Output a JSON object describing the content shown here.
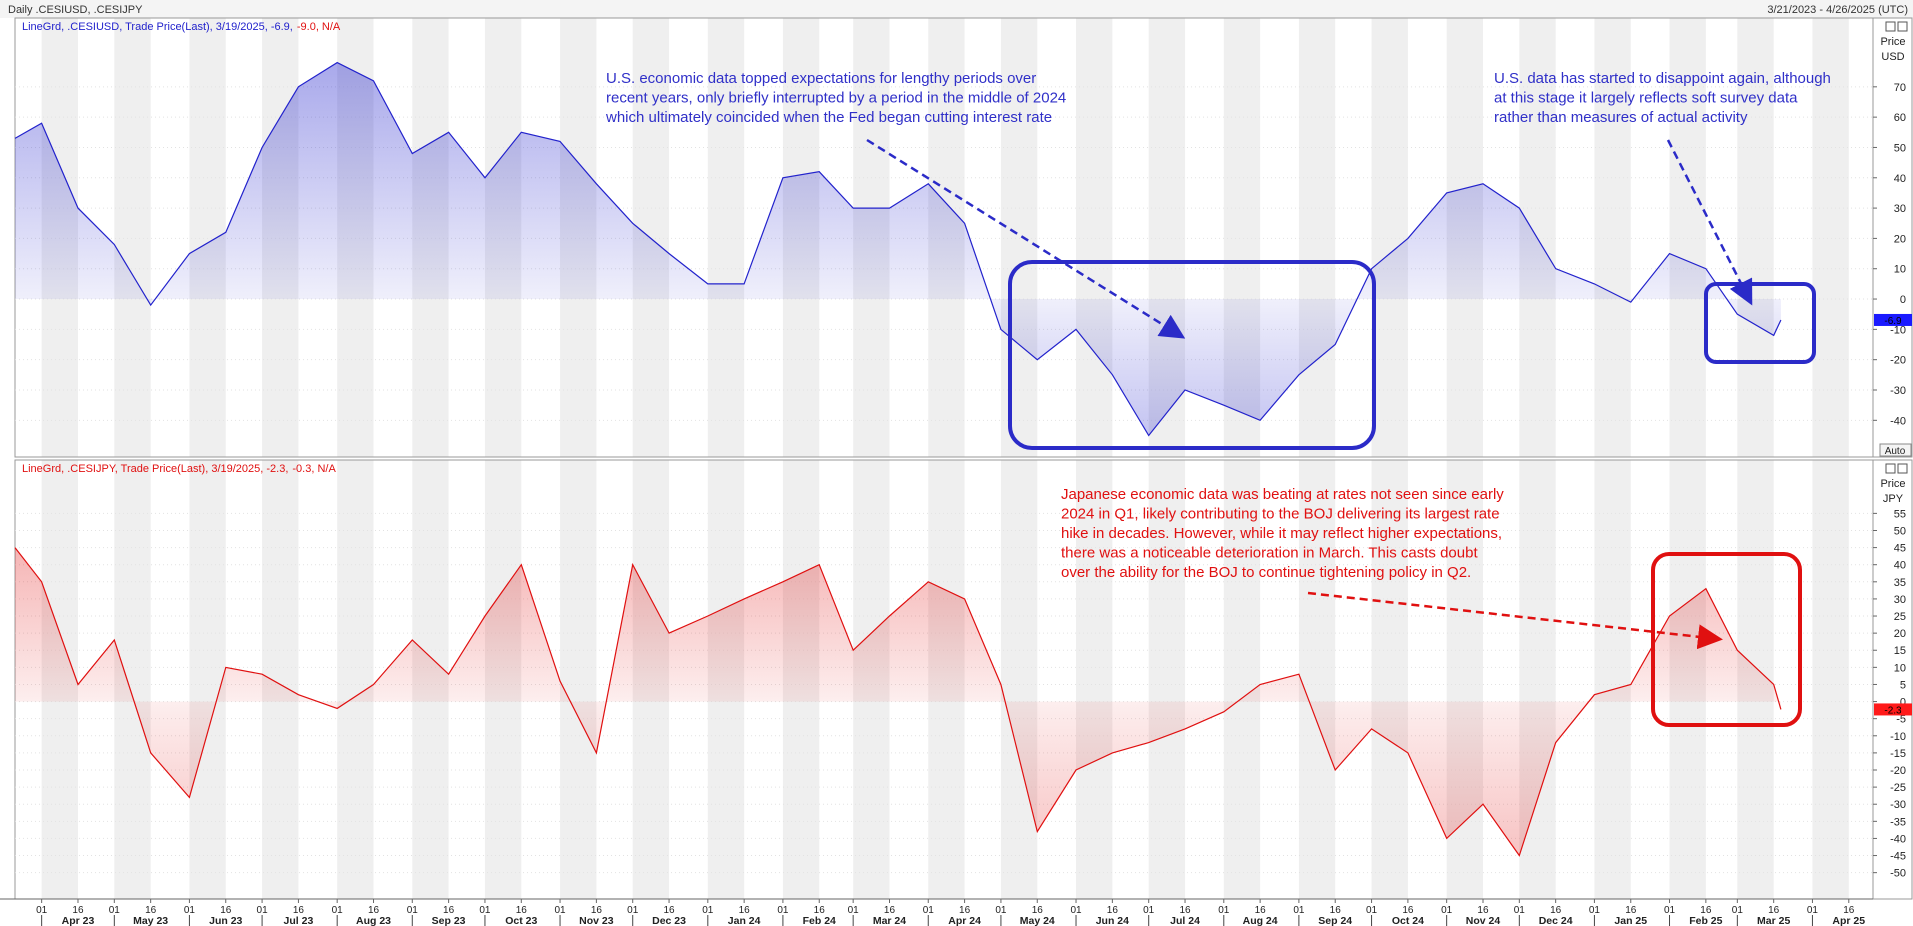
{
  "header": {
    "title": "Daily .CESIUSD, .CESIJPY",
    "range": "3/21/2023 - 4/26/2025 (UTC)"
  },
  "chart_data": [
    {
      "type": "line",
      "legend": "LineGrd, .CESIUSD, Trade Price(Last), 3/19/2025, -6.9,",
      "legend_change": "-9.0, N/A",
      "color": "#2222cc",
      "axis_label": [
        "Price",
        "USD"
      ],
      "auto_label": "Auto",
      "x": [
        "2023-03-21",
        "2023-04-01",
        "2023-04-16",
        "2023-05-01",
        "2023-05-16",
        "2023-06-01",
        "2023-06-16",
        "2023-07-01",
        "2023-07-16",
        "2023-08-01",
        "2023-08-16",
        "2023-09-01",
        "2023-09-16",
        "2023-10-01",
        "2023-10-16",
        "2023-11-01",
        "2023-11-16",
        "2023-12-01",
        "2023-12-16",
        "2024-01-01",
        "2024-01-16",
        "2024-02-01",
        "2024-02-16",
        "2024-03-01",
        "2024-03-16",
        "2024-04-01",
        "2024-04-16",
        "2024-05-01",
        "2024-05-16",
        "2024-06-01",
        "2024-06-16",
        "2024-07-01",
        "2024-07-16",
        "2024-08-01",
        "2024-08-16",
        "2024-09-01",
        "2024-09-16",
        "2024-10-01",
        "2024-10-16",
        "2024-11-01",
        "2024-11-16",
        "2024-12-01",
        "2024-12-16",
        "2025-01-01",
        "2025-01-16",
        "2025-02-01",
        "2025-02-16",
        "2025-03-01",
        "2025-03-16",
        "2025-03-19"
      ],
      "values": [
        53,
        58,
        30,
        18,
        -2,
        15,
        22,
        50,
        70,
        78,
        72,
        48,
        55,
        40,
        55,
        52,
        38,
        25,
        15,
        5,
        5,
        40,
        42,
        30,
        30,
        38,
        25,
        -10,
        -20,
        -10,
        -25,
        -45,
        -30,
        -35,
        -40,
        -25,
        -15,
        10,
        20,
        35,
        38,
        30,
        10,
        5,
        -1,
        15,
        10,
        -5,
        -12,
        -6.9
      ],
      "xlim": [
        "2023-03-21",
        "2025-04-26"
      ],
      "ylim": [
        -52.1,
        92.7
      ],
      "yticks": [
        -40,
        -30,
        -20,
        -10,
        0,
        10,
        20,
        30,
        40,
        50,
        60,
        70
      ],
      "annotations": [
        [
          "U.S. economic data topped expectations for lengthy periods over",
          "recent years, only briefly interrupted by a period in the middle of 2024",
          "which ultimately coincided when the Fed began cutting interest rate"
        ],
        [
          "U.S. data has started to disappoint again, although",
          "at this stage it largely reflects soft survey data",
          "rather than measures of actual activity"
        ]
      ]
    },
    {
      "type": "line",
      "legend": "LineGrd, .CESIJPY, Trade Price(Last), 3/19/2025, -2.3,",
      "legend_change": "-0.3, N/A",
      "color": "#e01010",
      "axis_label": [
        "Price",
        "JPY"
      ],
      "x": [
        "2023-03-21",
        "2023-04-01",
        "2023-04-16",
        "2023-05-01",
        "2023-05-16",
        "2023-06-01",
        "2023-06-16",
        "2023-07-01",
        "2023-07-16",
        "2023-08-01",
        "2023-08-16",
        "2023-09-01",
        "2023-09-16",
        "2023-10-01",
        "2023-10-16",
        "2023-11-01",
        "2023-11-16",
        "2023-12-01",
        "2023-12-16",
        "2024-01-01",
        "2024-01-16",
        "2024-02-01",
        "2024-02-16",
        "2024-03-01",
        "2024-03-16",
        "2024-04-01",
        "2024-04-16",
        "2024-05-01",
        "2024-05-16",
        "2024-06-01",
        "2024-06-16",
        "2024-07-01",
        "2024-07-16",
        "2024-08-01",
        "2024-08-16",
        "2024-09-01",
        "2024-09-16",
        "2024-10-01",
        "2024-10-16",
        "2024-11-01",
        "2024-11-16",
        "2024-12-01",
        "2024-12-16",
        "2025-01-01",
        "2025-01-16",
        "2025-02-01",
        "2025-02-16",
        "2025-03-01",
        "2025-03-16",
        "2025-03-19"
      ],
      "values": [
        45,
        35,
        5,
        18,
        -15,
        -28,
        10,
        8,
        2,
        -2,
        5,
        18,
        8,
        25,
        40,
        6,
        -15,
        40,
        20,
        25,
        30,
        35,
        40,
        15,
        25,
        35,
        30,
        5,
        -38,
        -20,
        -15,
        -12,
        -8,
        -3,
        5,
        8,
        -20,
        -8,
        -15,
        -40,
        -30,
        -45,
        -12,
        2,
        5,
        25,
        33,
        15,
        5,
        -2.3
      ],
      "xlim": [
        "2023-03-21",
        "2025-04-26"
      ],
      "ylim": [
        -57.7,
        70.6
      ],
      "yticks": [
        -50,
        -45,
        -40,
        -35,
        -30,
        -25,
        -20,
        -15,
        -10,
        -5,
        0,
        5,
        10,
        15,
        20,
        25,
        30,
        35,
        40,
        45,
        50,
        55
      ],
      "xticks": [
        {
          "value": "2023-04-01",
          "label": "01"
        },
        {
          "value": "2023-04-16",
          "label": "16"
        },
        {
          "value": "2023-05-01",
          "label": "01"
        },
        {
          "value": "2023-05-16",
          "label": "16"
        },
        {
          "value": "2023-06-01",
          "label": "01"
        },
        {
          "value": "2023-06-16",
          "label": "16"
        },
        {
          "value": "2023-07-01",
          "label": "01"
        },
        {
          "value": "2023-07-16",
          "label": "16"
        },
        {
          "value": "2023-08-01",
          "label": "01"
        },
        {
          "value": "2023-08-16",
          "label": "16"
        },
        {
          "value": "2023-09-01",
          "label": "01"
        },
        {
          "value": "2023-09-16",
          "label": "16"
        },
        {
          "value": "2023-10-01",
          "label": "01"
        },
        {
          "value": "2023-10-16",
          "label": "16"
        },
        {
          "value": "2023-11-01",
          "label": "01"
        },
        {
          "value": "2023-11-16",
          "label": "16"
        },
        {
          "value": "2023-12-01",
          "label": "01"
        },
        {
          "value": "2023-12-16",
          "label": "16"
        },
        {
          "value": "2024-01-01",
          "label": "01"
        },
        {
          "value": "2024-01-16",
          "label": "16"
        },
        {
          "value": "2024-02-01",
          "label": "01"
        },
        {
          "value": "2024-02-16",
          "label": "16"
        },
        {
          "value": "2024-03-01",
          "label": "01"
        },
        {
          "value": "2024-03-16",
          "label": "16"
        },
        {
          "value": "2024-04-01",
          "label": "01"
        },
        {
          "value": "2024-04-16",
          "label": "16"
        },
        {
          "value": "2024-05-01",
          "label": "01"
        },
        {
          "value": "2024-05-16",
          "label": "16"
        },
        {
          "value": "2024-06-01",
          "label": "01"
        },
        {
          "value": "2024-06-16",
          "label": "16"
        },
        {
          "value": "2024-07-01",
          "label": "01"
        },
        {
          "value": "2024-07-16",
          "label": "16"
        },
        {
          "value": "2024-08-01",
          "label": "01"
        },
        {
          "value": "2024-08-16",
          "label": "16"
        },
        {
          "value": "2024-09-01",
          "label": "01"
        },
        {
          "value": "2024-09-16",
          "label": "16"
        },
        {
          "value": "2024-10-01",
          "label": "01"
        },
        {
          "value": "2024-10-16",
          "label": "16"
        },
        {
          "value": "2024-11-01",
          "label": "01"
        },
        {
          "value": "2024-11-16",
          "label": "16"
        },
        {
          "value": "2024-12-01",
          "label": "01"
        },
        {
          "value": "2024-12-16",
          "label": "16"
        },
        {
          "value": "2025-01-01",
          "label": "01"
        },
        {
          "value": "2025-01-16",
          "label": "16"
        },
        {
          "value": "2025-02-01",
          "label": "01"
        },
        {
          "value": "2025-02-16",
          "label": "16"
        },
        {
          "value": "2025-03-01",
          "label": "01"
        },
        {
          "value": "2025-03-16",
          "label": "16"
        },
        {
          "value": "2025-04-01",
          "label": "01"
        },
        {
          "value": "2025-04-16",
          "label": "16"
        }
      ],
      "month_labels": [
        {
          "value": "2023-04-01",
          "label": "Apr 23"
        },
        {
          "value": "2023-05-01",
          "label": "May 23"
        },
        {
          "value": "2023-06-01",
          "label": "Jun 23"
        },
        {
          "value": "2023-07-01",
          "label": "Jul 23"
        },
        {
          "value": "2023-08-01",
          "label": "Aug 23"
        },
        {
          "value": "2023-09-01",
          "label": "Sep 23"
        },
        {
          "value": "2023-10-01",
          "label": "Oct 23"
        },
        {
          "value": "2023-11-01",
          "label": "Nov 23"
        },
        {
          "value": "2023-12-01",
          "label": "Dec 23"
        },
        {
          "value": "2024-01-01",
          "label": "Jan 24"
        },
        {
          "value": "2024-02-01",
          "label": "Feb 24"
        },
        {
          "value": "2024-03-01",
          "label": "Mar 24"
        },
        {
          "value": "2024-04-01",
          "label": "Apr 24"
        },
        {
          "value": "2024-05-01",
          "label": "May 24"
        },
        {
          "value": "2024-06-01",
          "label": "Jun 24"
        },
        {
          "value": "2024-07-01",
          "label": "Jul 24"
        },
        {
          "value": "2024-08-01",
          "label": "Aug 24"
        },
        {
          "value": "2024-09-01",
          "label": "Sep 24"
        },
        {
          "value": "2024-10-01",
          "label": "Oct 24"
        },
        {
          "value": "2024-11-01",
          "label": "Nov 24"
        },
        {
          "value": "2024-12-01",
          "label": "Dec 24"
        },
        {
          "value": "2025-01-01",
          "label": "Jan 25"
        },
        {
          "value": "2025-02-01",
          "label": "Feb 25"
        },
        {
          "value": "2025-03-01",
          "label": "Mar 25"
        },
        {
          "value": "2025-04-01",
          "label": "Apr 25"
        }
      ],
      "annotations": [
        [
          "Japanese economic data was beating at rates not seen since early",
          "2024 in Q1, likely contributing to the BOJ delivering its largest rate",
          "hike in decades. However, while it may reflect higher expectations,",
          "there was a noticeable deterioration in March. This casts doubt",
          "over the ability for the BOJ to continue tightening policy in Q2."
        ]
      ]
    }
  ]
}
